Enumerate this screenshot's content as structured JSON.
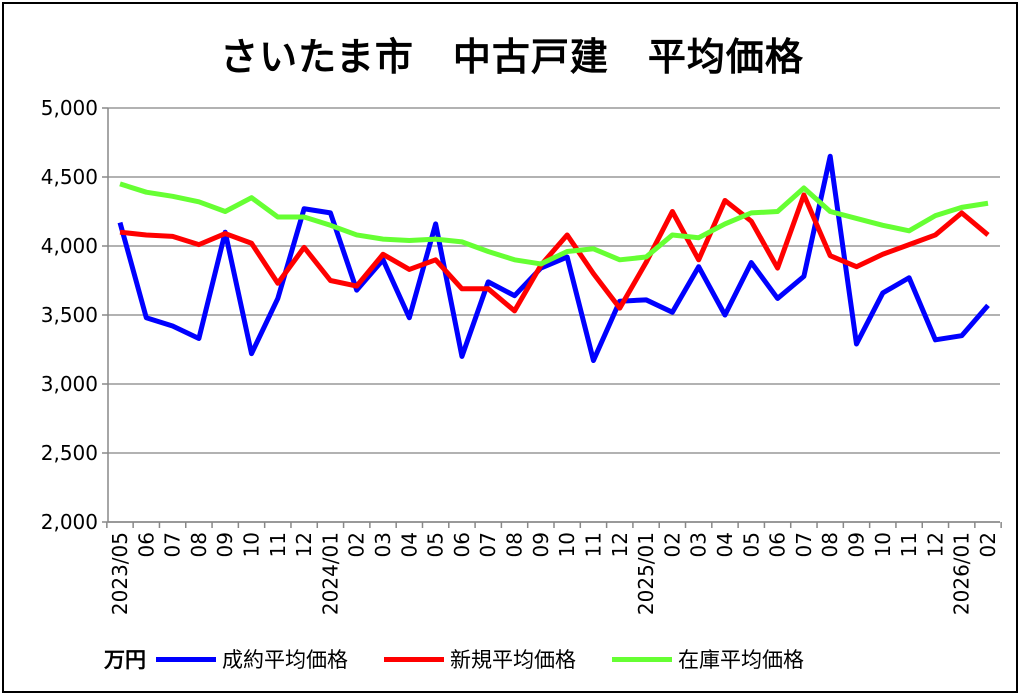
{
  "chart_data": {
    "type": "line",
    "title": "さいたま市　中古戸建　平均価格",
    "unit_label": "万円",
    "ylim": [
      2000,
      5000
    ],
    "yticks": [
      2000,
      2500,
      3000,
      3500,
      4000,
      4500,
      5000
    ],
    "ytick_labels": [
      "2,000",
      "2,500",
      "3,000",
      "3,500",
      "4,000",
      "4,500",
      "5,000"
    ],
    "grid": true,
    "legend_position": "bottom",
    "categories": [
      "2023/05",
      "06",
      "07",
      "08",
      "09",
      "10",
      "11",
      "12",
      "2024/01",
      "02",
      "03",
      "04",
      "05",
      "06",
      "07",
      "08",
      "09",
      "10",
      "11",
      "12",
      "2025/01",
      "02",
      "03",
      "04",
      "05",
      "06",
      "07",
      "08",
      "09",
      "10",
      "11",
      "12",
      "2026/01",
      "02"
    ],
    "series": [
      {
        "name": "成約平均価格",
        "color": "#0000FF",
        "values": [
          4170,
          3480,
          3420,
          3330,
          4100,
          3220,
          3620,
          4270,
          4240,
          3680,
          3900,
          3480,
          4160,
          3200,
          3740,
          3640,
          3840,
          3920,
          3170,
          3600,
          3610,
          3520,
          3850,
          3500,
          3880,
          3620,
          3780,
          4650,
          3290,
          3660,
          3770,
          3320,
          3350,
          3570
        ]
      },
      {
        "name": "新規平均価格",
        "color": "#FF0000",
        "values": [
          4100,
          4080,
          4070,
          4010,
          4090,
          4020,
          3730,
          3990,
          3750,
          3710,
          3940,
          3830,
          3900,
          3690,
          3690,
          3530,
          3860,
          4080,
          3800,
          3550,
          3880,
          4250,
          3900,
          4330,
          4180,
          3840,
          4370,
          3930,
          3850,
          3940,
          4010,
          4080,
          4240,
          4080
        ]
      },
      {
        "name": "在庫平均価格",
        "color": "#66FF33",
        "values": [
          4450,
          4390,
          4360,
          4320,
          4250,
          4350,
          4210,
          4210,
          4150,
          4080,
          4050,
          4040,
          4050,
          4030,
          3960,
          3900,
          3870,
          3960,
          3980,
          3900,
          3920,
          4080,
          4060,
          4160,
          4240,
          4250,
          4420,
          4250,
          4200,
          4150,
          4110,
          4220,
          4280,
          4310
        ]
      }
    ]
  }
}
